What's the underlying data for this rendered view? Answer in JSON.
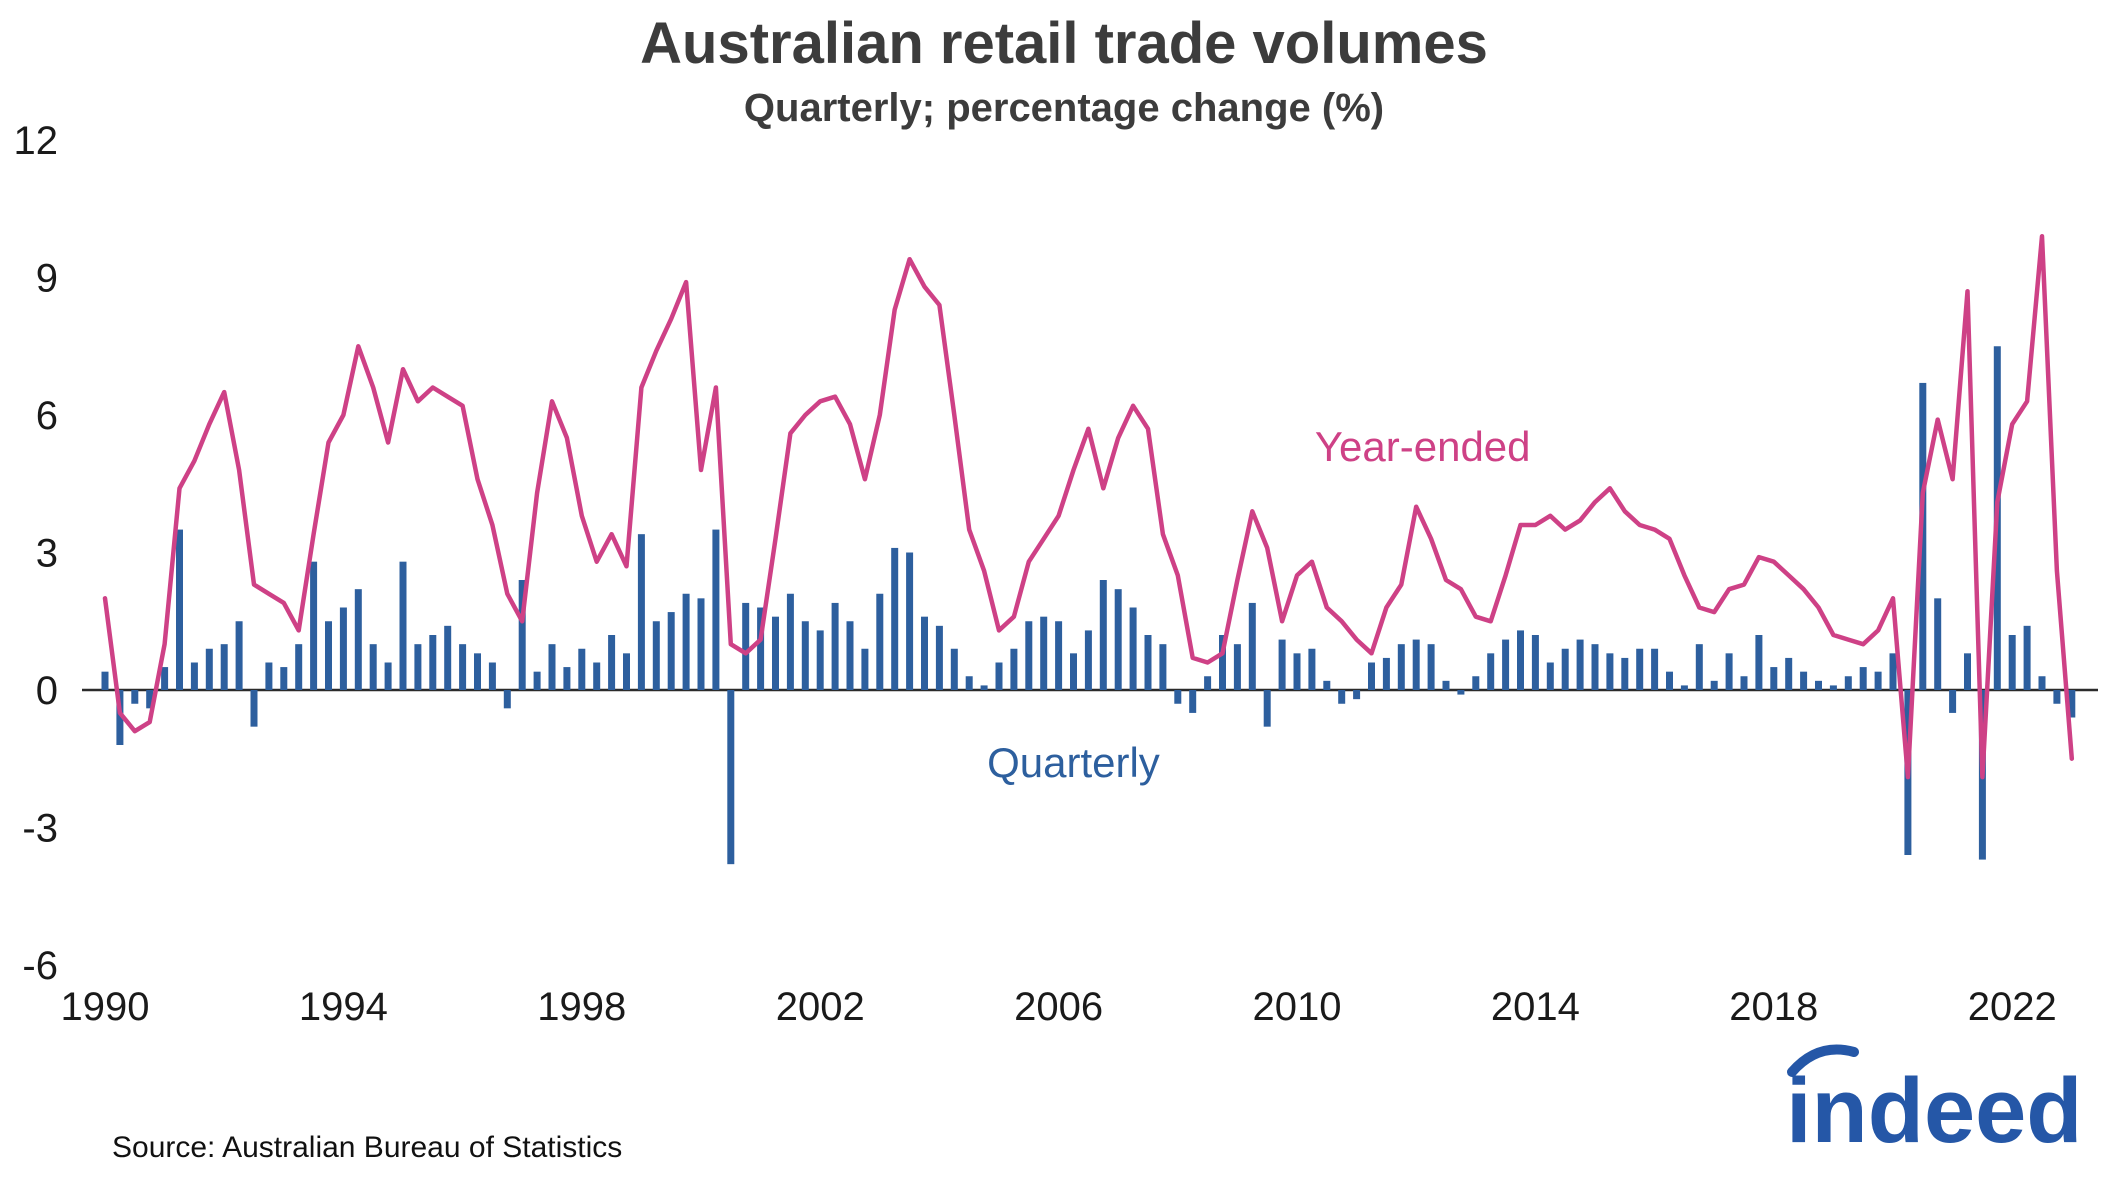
{
  "title": "Australian retail trade volumes",
  "subtitle": "Quarterly; percentage change (%)",
  "source": "Source: Australian Bureau of Statistics",
  "logo_text": "indeed",
  "colors": {
    "bar": "#2d5f9e",
    "line": "#ce4186",
    "axis": "#2b2b2b",
    "tick_text": "#1a1a1a",
    "title_text": "#3c3c3c",
    "logo": "#2557a7"
  },
  "series_labels": {
    "line": "Year-ended",
    "bar": "Quarterly"
  },
  "chart_data": {
    "type": "bar",
    "note": "bar series = quarterly % change; line series = year-ended % change",
    "title": "Australian retail trade volumes",
    "subtitle": "Quarterly; percentage change (%)",
    "xlabel": "",
    "ylabel": "",
    "ylim": [
      -6,
      12
    ],
    "yticks": [
      12,
      9,
      6,
      3,
      0,
      -3,
      -6
    ],
    "xticks": [
      1990,
      1994,
      1998,
      2002,
      2006,
      2010,
      2014,
      2018,
      2022
    ],
    "x_start_year": 1990,
    "x_step_years": 0.25,
    "quarters": [
      "1990Q1",
      "1990Q2",
      "1990Q3",
      "1990Q4",
      "1991Q1",
      "1991Q2",
      "1991Q3",
      "1991Q4",
      "1992Q1",
      "1992Q2",
      "1992Q3",
      "1992Q4",
      "1993Q1",
      "1993Q2",
      "1993Q3",
      "1993Q4",
      "1994Q1",
      "1994Q2",
      "1994Q3",
      "1994Q4",
      "1995Q1",
      "1995Q2",
      "1995Q3",
      "1995Q4",
      "1996Q1",
      "1996Q2",
      "1996Q3",
      "1996Q4",
      "1997Q1",
      "1997Q2",
      "1997Q3",
      "1997Q4",
      "1998Q1",
      "1998Q2",
      "1998Q3",
      "1998Q4",
      "1999Q1",
      "1999Q2",
      "1999Q3",
      "1999Q4",
      "2000Q1",
      "2000Q2",
      "2000Q3",
      "2000Q4",
      "2001Q1",
      "2001Q2",
      "2001Q3",
      "2001Q4",
      "2002Q1",
      "2002Q2",
      "2002Q3",
      "2002Q4",
      "2003Q1",
      "2003Q2",
      "2003Q3",
      "2003Q4",
      "2004Q1",
      "2004Q2",
      "2004Q3",
      "2004Q4",
      "2005Q1",
      "2005Q2",
      "2005Q3",
      "2005Q4",
      "2006Q1",
      "2006Q2",
      "2006Q3",
      "2006Q4",
      "2007Q1",
      "2007Q2",
      "2007Q3",
      "2007Q4",
      "2008Q1",
      "2008Q2",
      "2008Q3",
      "2008Q4",
      "2009Q1",
      "2009Q2",
      "2009Q3",
      "2009Q4",
      "2010Q1",
      "2010Q2",
      "2010Q3",
      "2010Q4",
      "2011Q1",
      "2011Q2",
      "2011Q3",
      "2011Q4",
      "2012Q1",
      "2012Q2",
      "2012Q3",
      "2012Q4",
      "2013Q1",
      "2013Q2",
      "2013Q3",
      "2013Q4",
      "2014Q1",
      "2014Q2",
      "2014Q3",
      "2014Q4",
      "2015Q1",
      "2015Q2",
      "2015Q3",
      "2015Q4",
      "2016Q1",
      "2016Q2",
      "2016Q3",
      "2016Q4",
      "2017Q1",
      "2017Q2",
      "2017Q3",
      "2017Q4",
      "2018Q1",
      "2018Q2",
      "2018Q3",
      "2018Q4",
      "2019Q1",
      "2019Q2",
      "2019Q3",
      "2019Q4",
      "2020Q1",
      "2020Q2",
      "2020Q3",
      "2020Q4",
      "2021Q1",
      "2021Q2",
      "2021Q3",
      "2021Q4",
      "2022Q1",
      "2022Q2",
      "2022Q3",
      "2022Q4",
      "2023Q1"
    ],
    "series": [
      {
        "name": "Quarterly",
        "type": "bar",
        "values": [
          0.4,
          -1.2,
          -0.3,
          -0.4,
          0.5,
          3.5,
          0.6,
          0.9,
          1.0,
          1.5,
          -0.8,
          0.6,
          0.5,
          1.0,
          2.8,
          1.5,
          1.8,
          2.2,
          1.0,
          0.6,
          2.8,
          1.0,
          1.2,
          1.4,
          1.0,
          0.8,
          0.6,
          -0.4,
          2.4,
          0.4,
          1.0,
          0.5,
          0.9,
          0.6,
          1.2,
          0.8,
          3.4,
          1.5,
          1.7,
          2.1,
          2.0,
          3.5,
          -3.8,
          1.9,
          1.8,
          1.6,
          2.1,
          1.5,
          1.3,
          1.9,
          1.5,
          0.9,
          2.1,
          3.1,
          3.0,
          1.6,
          1.4,
          0.9,
          0.3,
          0.1,
          0.6,
          0.9,
          1.5,
          1.6,
          1.5,
          0.8,
          1.3,
          2.4,
          2.2,
          1.8,
          1.2,
          1.0,
          -0.3,
          -0.5,
          0.3,
          1.2,
          1.0,
          1.9,
          -0.8,
          1.1,
          0.8,
          0.9,
          0.2,
          -0.3,
          -0.2,
          0.6,
          0.7,
          1.0,
          1.1,
          1.0,
          0.2,
          -0.1,
          0.3,
          0.8,
          1.1,
          1.3,
          1.2,
          0.6,
          0.9,
          1.1,
          1.0,
          0.8,
          0.7,
          0.9,
          0.9,
          0.4,
          0.1,
          1.0,
          0.2,
          0.8,
          0.3,
          1.2,
          0.5,
          0.7,
          0.4,
          0.2,
          0.1,
          0.3,
          0.5,
          0.4,
          0.8,
          -3.6,
          6.7,
          2.0,
          -0.5,
          0.8,
          -3.7,
          7.5,
          1.2,
          1.4,
          0.3,
          -0.3,
          -0.6
        ]
      },
      {
        "name": "Year-ended",
        "type": "line",
        "values": [
          2.0,
          -0.5,
          -0.9,
          -0.7,
          1.0,
          4.4,
          5.0,
          5.8,
          6.5,
          4.8,
          2.3,
          2.1,
          1.9,
          1.3,
          3.4,
          5.4,
          6.0,
          7.5,
          6.6,
          5.4,
          7.0,
          6.3,
          6.6,
          6.4,
          6.2,
          4.6,
          3.6,
          2.1,
          1.5,
          4.3,
          6.3,
          5.5,
          3.8,
          2.8,
          3.4,
          2.7,
          6.6,
          7.4,
          8.1,
          8.9,
          4.8,
          6.6,
          1.0,
          0.8,
          1.1,
          3.3,
          5.6,
          6.0,
          6.3,
          6.4,
          5.8,
          4.6,
          6.0,
          8.3,
          9.4,
          8.8,
          8.4,
          6.0,
          3.5,
          2.6,
          1.3,
          1.6,
          2.8,
          3.3,
          3.8,
          4.8,
          5.7,
          4.4,
          5.5,
          6.2,
          5.7,
          3.4,
          2.5,
          0.7,
          0.6,
          0.8,
          2.4,
          3.9,
          3.1,
          1.5,
          2.5,
          2.8,
          1.8,
          1.5,
          1.1,
          0.8,
          1.8,
          2.3,
          4.0,
          3.3,
          2.4,
          2.2,
          1.6,
          1.5,
          2.5,
          3.6,
          3.6,
          3.8,
          3.5,
          3.7,
          4.1,
          4.4,
          3.9,
          3.6,
          3.5,
          3.3,
          2.5,
          1.8,
          1.7,
          2.2,
          2.3,
          2.9,
          2.8,
          2.5,
          2.2,
          1.8,
          1.2,
          1.1,
          1.0,
          1.3,
          2.0,
          -1.9,
          4.3,
          5.9,
          4.6,
          8.7,
          -1.9,
          4.1,
          5.8,
          6.3,
          9.9,
          2.6,
          -1.5
        ]
      }
    ],
    "annotations": [
      {
        "text": "Year-ended",
        "x_year": 2010.3,
        "y_value": 5.0,
        "color_key": "line"
      },
      {
        "text": "Quarterly",
        "x_year": 2004.8,
        "y_value": -1.9,
        "color_key": "bar"
      }
    ],
    "legend_position": "inline-annotations",
    "grid": false
  }
}
